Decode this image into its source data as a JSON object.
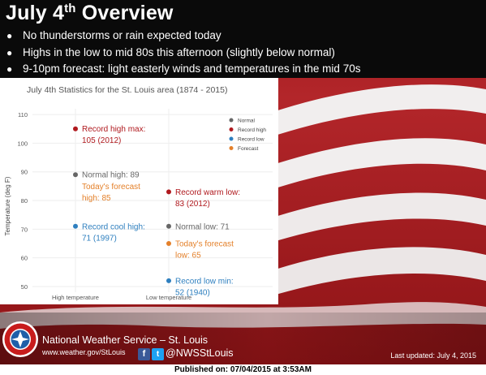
{
  "slide": {
    "title_main": "July 4",
    "title_sup": "th",
    "title_rest": " Overview",
    "bullets": [
      "No thunderstorms or rain expected today",
      "Highs in the low to mid 80s this afternoon (slightly below normal)",
      "9-10pm forecast: light easterly winds and temperatures in the mid 70s"
    ]
  },
  "colors": {
    "normal": "#666666",
    "record_high": "#b0191e",
    "record_low": "#2e7fbf",
    "forecast": "#e4802a"
  },
  "chart_data": {
    "type": "scatter",
    "title": "July 4th Statistics for the St. Louis area (1874 - 2015)",
    "ylabel": "Temperature (deg F)",
    "xlabel": "",
    "categories": [
      "High temperature",
      "Low temperature"
    ],
    "ylim": [
      48,
      112
    ],
    "yticks": [
      50,
      60,
      70,
      80,
      90,
      100,
      110
    ],
    "grid": true,
    "legend_position": "top-right",
    "legend": [
      {
        "name": "Normal",
        "color_key": "normal"
      },
      {
        "name": "Record high",
        "color_key": "record_high"
      },
      {
        "name": "Record low",
        "color_key": "record_low"
      },
      {
        "name": "Forecast",
        "color_key": "forecast"
      }
    ],
    "points": [
      {
        "x": "High temperature",
        "y": 105,
        "kind": "record_high",
        "marker": true,
        "label": [
          "Record high max:",
          "105 (2012)"
        ]
      },
      {
        "x": "High temperature",
        "y": 89,
        "kind": "normal",
        "marker": true,
        "label": [
          "Normal high: 89"
        ]
      },
      {
        "x": "High temperature",
        "y": 85,
        "kind": "forecast",
        "marker": false,
        "label": [
          "Today's forecast",
          "high: 85"
        ]
      },
      {
        "x": "High temperature",
        "y": 71,
        "kind": "record_low",
        "marker": true,
        "label": [
          "Record cool high:",
          "71 (1997)"
        ]
      },
      {
        "x": "Low temperature",
        "y": 83,
        "kind": "record_high",
        "marker": true,
        "label": [
          "Record warm low:",
          "83 (2012)"
        ]
      },
      {
        "x": "Low temperature",
        "y": 71,
        "kind": "normal",
        "marker": true,
        "label": [
          "Normal low: 71"
        ]
      },
      {
        "x": "Low temperature",
        "y": 65,
        "kind": "forecast",
        "marker": true,
        "label": [
          "Today's forecast",
          "low: 65"
        ]
      },
      {
        "x": "Low temperature",
        "y": 52,
        "kind": "record_low",
        "marker": true,
        "label": [
          "Record low min:",
          "52 (1940)"
        ]
      }
    ]
  },
  "footer": {
    "agency": "National Weather Service – St. Louis",
    "website": "www.weather.gov/StLouis",
    "facebook_icon": "f",
    "twitter_icon": "t",
    "social_handle": "@NWSStLouis",
    "last_updated": "Last updated: July 4, 2015",
    "published": "Published on: 07/04/2015 at 3:53AM"
  }
}
